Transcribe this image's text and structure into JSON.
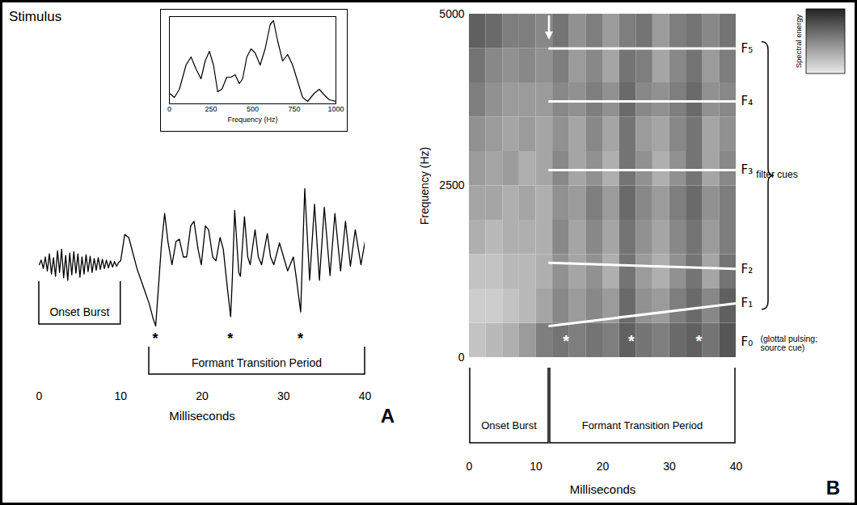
{
  "chart_data": [
    {
      "type": "line",
      "panel": "A",
      "title": "Stimulus",
      "color": "#000000",
      "x": [
        0,
        0.25,
        0.5,
        0.75,
        1,
        1.25,
        1.5,
        1.75,
        2,
        2.25,
        2.5,
        2.75,
        3,
        3.25,
        3.5,
        3.75,
        4,
        4.25,
        4.5,
        4.75,
        5,
        5.25,
        5.5,
        5.75,
        6,
        6.25,
        6.5,
        6.75,
        7,
        7.25,
        7.5,
        7.75,
        8,
        8.25,
        8.5,
        8.75,
        9,
        9.25,
        9.5,
        9.75,
        10,
        10.5,
        11,
        11.5,
        12,
        12.5,
        13,
        13.5,
        14,
        14.3,
        14.7,
        15,
        15.4,
        15.8,
        16.3,
        16.8,
        17.2,
        17.7,
        18.1,
        18.6,
        19,
        19.5,
        19.9,
        20.4,
        20.8,
        21.3,
        21.7,
        22.2,
        22.6,
        23.1,
        23.5,
        23.7,
        24,
        24.5,
        24.7,
        25.2,
        25.6,
        25.9,
        26.5,
        26.9,
        27.3,
        28,
        28.4,
        28.8,
        29.5,
        30,
        30.5,
        31.2,
        31.6,
        32.1,
        32.6,
        33.2,
        33.8,
        34.4,
        35,
        35.7,
        36.3,
        37,
        37.6,
        38.2,
        38.8,
        39.5,
        40
      ],
      "values": [
        0,
        0.06,
        -0.05,
        0.1,
        -0.08,
        0.14,
        -0.12,
        0.09,
        -0.15,
        0.18,
        -0.1,
        0.2,
        -0.17,
        0.12,
        -0.2,
        0.15,
        -0.13,
        0.17,
        -0.11,
        0.14,
        -0.16,
        0.1,
        -0.12,
        0.13,
        -0.09,
        0.11,
        -0.1,
        0.08,
        -0.07,
        0.09,
        -0.06,
        0.07,
        -0.05,
        0.06,
        -0.04,
        0.05,
        -0.03,
        0.04,
        -0.02,
        0.03,
        0.05,
        0.39,
        0.35,
        0.15,
        -0.05,
        -0.2,
        -0.35,
        -0.5,
        -0.7,
        -0.79,
        -0.2,
        0.25,
        0.66,
        0.3,
        0,
        0.3,
        0.33,
        0.1,
        0.1,
        0.5,
        0.56,
        0.2,
        0,
        0.5,
        0.45,
        0.1,
        0.05,
        0.35,
        0.2,
        -0.3,
        -0.67,
        -0.2,
        0.7,
        -0.1,
        -0.15,
        0.62,
        0.1,
        0,
        0.45,
        0.1,
        0,
        0.4,
        0.1,
        0,
        0.28,
        0.1,
        -0.08,
        0.1,
        -0.2,
        -0.61,
        0.98,
        -0.2,
        0.78,
        -0.2,
        0.74,
        -0.14,
        0.66,
        -0.08,
        0.56,
        -0.02,
        0.45,
        0,
        0.3
      ],
      "xlim": [
        0,
        40
      ],
      "xticks": [
        0,
        10,
        20,
        30,
        40
      ],
      "x_label": "Milliseconds",
      "tick_labels": "x",
      "markers": {
        "x": [
          14.3,
          23.5,
          32.1
        ],
        "text": "*"
      },
      "annotations": [
        {
          "text": "Onset Burst",
          "x": [
            0,
            10
          ]
        },
        {
          "text": "Formant Transition Period",
          "x": [
            13.5,
            40
          ]
        }
      ]
    },
    {
      "type": "line",
      "color": "#000000",
      "x": [
        0,
        30,
        60,
        100,
        130,
        160,
        190,
        215,
        240,
        265,
        290,
        315,
        345,
        370,
        395,
        420,
        440,
        465,
        490,
        515,
        545,
        575,
        605,
        625,
        650,
        680,
        710,
        740,
        770,
        800,
        830,
        870,
        900,
        930,
        960,
        1000
      ],
      "values": [
        0.1,
        0.05,
        0.15,
        0.45,
        0.55,
        0.4,
        0.28,
        0.5,
        0.62,
        0.45,
        0.12,
        0.15,
        0.3,
        0.3,
        0.33,
        0.22,
        0.28,
        0.55,
        0.65,
        0.6,
        0.45,
        0.65,
        0.95,
        1.0,
        0.75,
        0.5,
        0.58,
        0.45,
        0.25,
        0.05,
        0,
        0.1,
        0.15,
        0.08,
        0.02,
        0
      ],
      "xlim": [
        0,
        1000
      ],
      "xticks": [
        0,
        250,
        500,
        750,
        1000
      ],
      "x_label": "Frequency (Hz)",
      "tick_labels": "x"
    },
    {
      "type": "heatmap",
      "panel": "B",
      "x_label": "Milliseconds",
      "y_label": "Frequency (Hz)",
      "xlim": [
        0,
        40
      ],
      "ylim": [
        0,
        5000
      ],
      "xticks": [
        0,
        10,
        20,
        30,
        40
      ],
      "yticks": [
        0,
        2500,
        5000
      ],
      "x_bins": [
        0,
        2.5,
        5,
        7.5,
        10,
        12.5,
        15,
        17.5,
        20,
        22.5,
        25,
        27.5,
        30,
        32.5,
        35,
        37.5,
        40
      ],
      "y_bins": [
        0,
        500,
        1000,
        1500,
        2000,
        2500,
        3000,
        3500,
        4000,
        4500,
        5000
      ],
      "cells": [
        [
          0.2,
          0.25,
          0.3,
          0.4,
          0.55,
          0.6,
          0.55,
          0.6,
          0.55,
          0.7,
          0.6,
          0.55,
          0.65,
          0.7,
          0.6,
          0.75
        ],
        [
          0.15,
          0.15,
          0.2,
          0.25,
          0.35,
          0.5,
          0.4,
          0.5,
          0.4,
          0.65,
          0.45,
          0.4,
          0.55,
          0.65,
          0.5,
          0.7
        ],
        [
          0.2,
          0.2,
          0.25,
          0.25,
          0.3,
          0.45,
          0.35,
          0.45,
          0.3,
          0.6,
          0.4,
          0.3,
          0.45,
          0.6,
          0.35,
          0.6
        ],
        [
          0.3,
          0.25,
          0.3,
          0.3,
          0.3,
          0.5,
          0.35,
          0.5,
          0.35,
          0.6,
          0.45,
          0.35,
          0.5,
          0.6,
          0.4,
          0.55
        ],
        [
          0.35,
          0.35,
          0.3,
          0.35,
          0.3,
          0.45,
          0.4,
          0.55,
          0.4,
          0.65,
          0.5,
          0.4,
          0.55,
          0.65,
          0.45,
          0.55
        ],
        [
          0.4,
          0.35,
          0.4,
          0.3,
          0.35,
          0.5,
          0.35,
          0.45,
          0.3,
          0.6,
          0.45,
          0.3,
          0.45,
          0.6,
          0.35,
          0.5
        ],
        [
          0.45,
          0.4,
          0.35,
          0.4,
          0.35,
          0.45,
          0.35,
          0.5,
          0.35,
          0.6,
          0.4,
          0.35,
          0.5,
          0.6,
          0.35,
          0.45
        ],
        [
          0.55,
          0.45,
          0.4,
          0.4,
          0.4,
          0.5,
          0.45,
          0.55,
          0.45,
          0.65,
          0.5,
          0.45,
          0.55,
          0.65,
          0.45,
          0.5
        ],
        [
          0.6,
          0.5,
          0.45,
          0.5,
          0.45,
          0.55,
          0.4,
          0.5,
          0.35,
          0.6,
          0.55,
          0.35,
          0.5,
          0.6,
          0.4,
          0.55
        ],
        [
          0.7,
          0.65,
          0.55,
          0.55,
          0.5,
          0.6,
          0.45,
          0.55,
          0.4,
          0.55,
          0.6,
          0.4,
          0.55,
          0.6,
          0.5,
          0.6
        ]
      ],
      "color_range": [
        0,
        1
      ],
      "colorbar_label": "Spectral energy",
      "series": [
        {
          "name": "F₅",
          "color": "#ffffff",
          "x": [
            12,
            40
          ],
          "values": [
            4500,
            4500
          ]
        },
        {
          "name": "F₄",
          "color": "#ffffff",
          "x": [
            12,
            40
          ],
          "values": [
            3730,
            3730
          ]
        },
        {
          "name": "F₃",
          "color": "#ffffff",
          "x": [
            12,
            40
          ],
          "values": [
            2730,
            2730
          ]
        },
        {
          "name": "F₂",
          "color": "#ffffff",
          "x": [
            12,
            40
          ],
          "values": [
            1380,
            1290
          ]
        },
        {
          "name": "F₁",
          "color": "#ffffff",
          "x": [
            12,
            40
          ],
          "values": [
            460,
            790
          ]
        }
      ],
      "group_label": "filter cues",
      "markers": {
        "x": [
          14.5,
          24.3,
          34.4
        ],
        "y": [
          230,
          230,
          230
        ],
        "text": "*",
        "color": "#ffffff",
        "name": "F₀",
        "label": "(glottal pulsing; source cue)"
      },
      "annotations": [
        {
          "text": "Onset Burst",
          "x": [
            0,
            12
          ]
        },
        {
          "text": "Formant Transition Period",
          "x": [
            12,
            40
          ]
        }
      ]
    }
  ]
}
